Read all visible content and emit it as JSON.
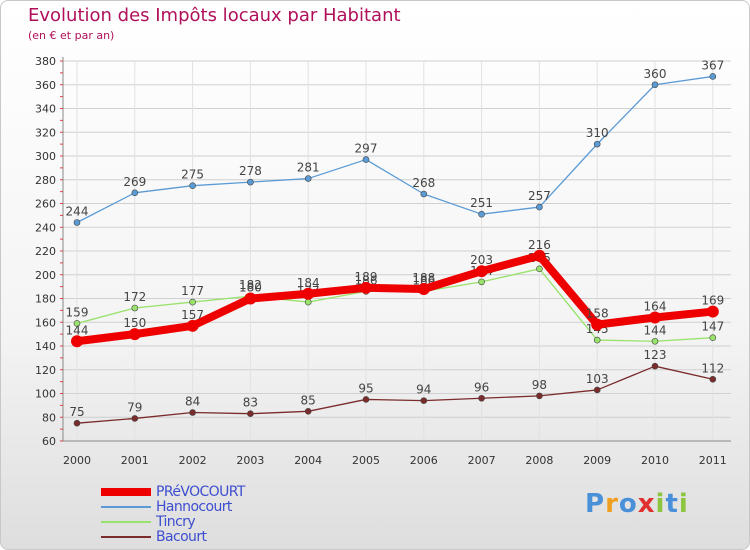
{
  "header": {
    "title": "Evolution des Impôts locaux par Habitant",
    "subtitle": "(en € et par an)"
  },
  "chart_data": {
    "type": "line",
    "title": "Evolution des Impôts locaux par Habitant",
    "subtitle": "(en € et par an)",
    "xlabel": "",
    "ylabel": "",
    "categories": [
      "2000",
      "2001",
      "2002",
      "2003",
      "2004",
      "2005",
      "2006",
      "2007",
      "2008",
      "2009",
      "2010",
      "2011"
    ],
    "ylim": [
      60,
      380
    ],
    "yticks": [
      60,
      80,
      100,
      120,
      140,
      160,
      180,
      200,
      220,
      240,
      260,
      280,
      300,
      320,
      340,
      360,
      380
    ],
    "grid": true,
    "legend_position": "bottom-left",
    "series": [
      {
        "name": "Hannocourt",
        "color": "#5b9bd5",
        "values": [
          244,
          269,
          275,
          278,
          281,
          297,
          268,
          251,
          257,
          310,
          360,
          367
        ]
      },
      {
        "name": "Tincry",
        "color": "#99e26b",
        "values": [
          159,
          172,
          177,
          182,
          177,
          186,
          186,
          194,
          205,
          145,
          144,
          147
        ]
      },
      {
        "name": "Bacourt",
        "color": "#7a2b2b",
        "values": [
          75,
          79,
          84,
          83,
          85,
          95,
          94,
          96,
          98,
          103,
          123,
          112
        ]
      },
      {
        "name": "PRéVOCOURT",
        "color": "#ee0000",
        "values": [
          144,
          150,
          157,
          180,
          184,
          189,
          188,
          203,
          216,
          158,
          164,
          169
        ]
      }
    ]
  },
  "legend": {
    "items": [
      {
        "label": "PRéVOCOURT",
        "color": "#ee0000"
      },
      {
        "label": "Hannocourt",
        "color": "#5b9bd5"
      },
      {
        "label": "Tincry",
        "color": "#99e26b"
      },
      {
        "label": "Bacourt",
        "color": "#7a2b2b"
      }
    ]
  },
  "brand": {
    "letters": [
      "P",
      "r",
      "o",
      "x",
      "i",
      "t",
      "i"
    ],
    "colors": [
      "#4a90d9",
      "#f0a020",
      "#4a90d9",
      "#e03030",
      "#8cc63f",
      "#4a90d9",
      "#8cc63f"
    ]
  }
}
